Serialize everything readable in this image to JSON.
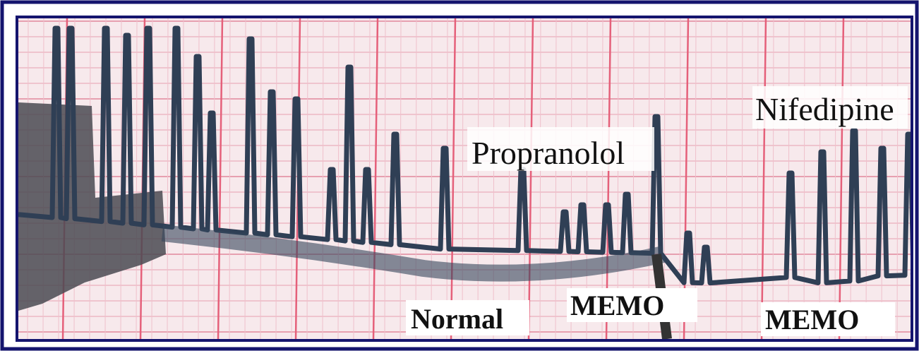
{
  "labels": {
    "top_middle": "Propranolol",
    "top_right": "Nifedipine",
    "bottom_left": "Normal",
    "bottom_middle": "MEMO",
    "bottom_right": "MEMO"
  }
}
